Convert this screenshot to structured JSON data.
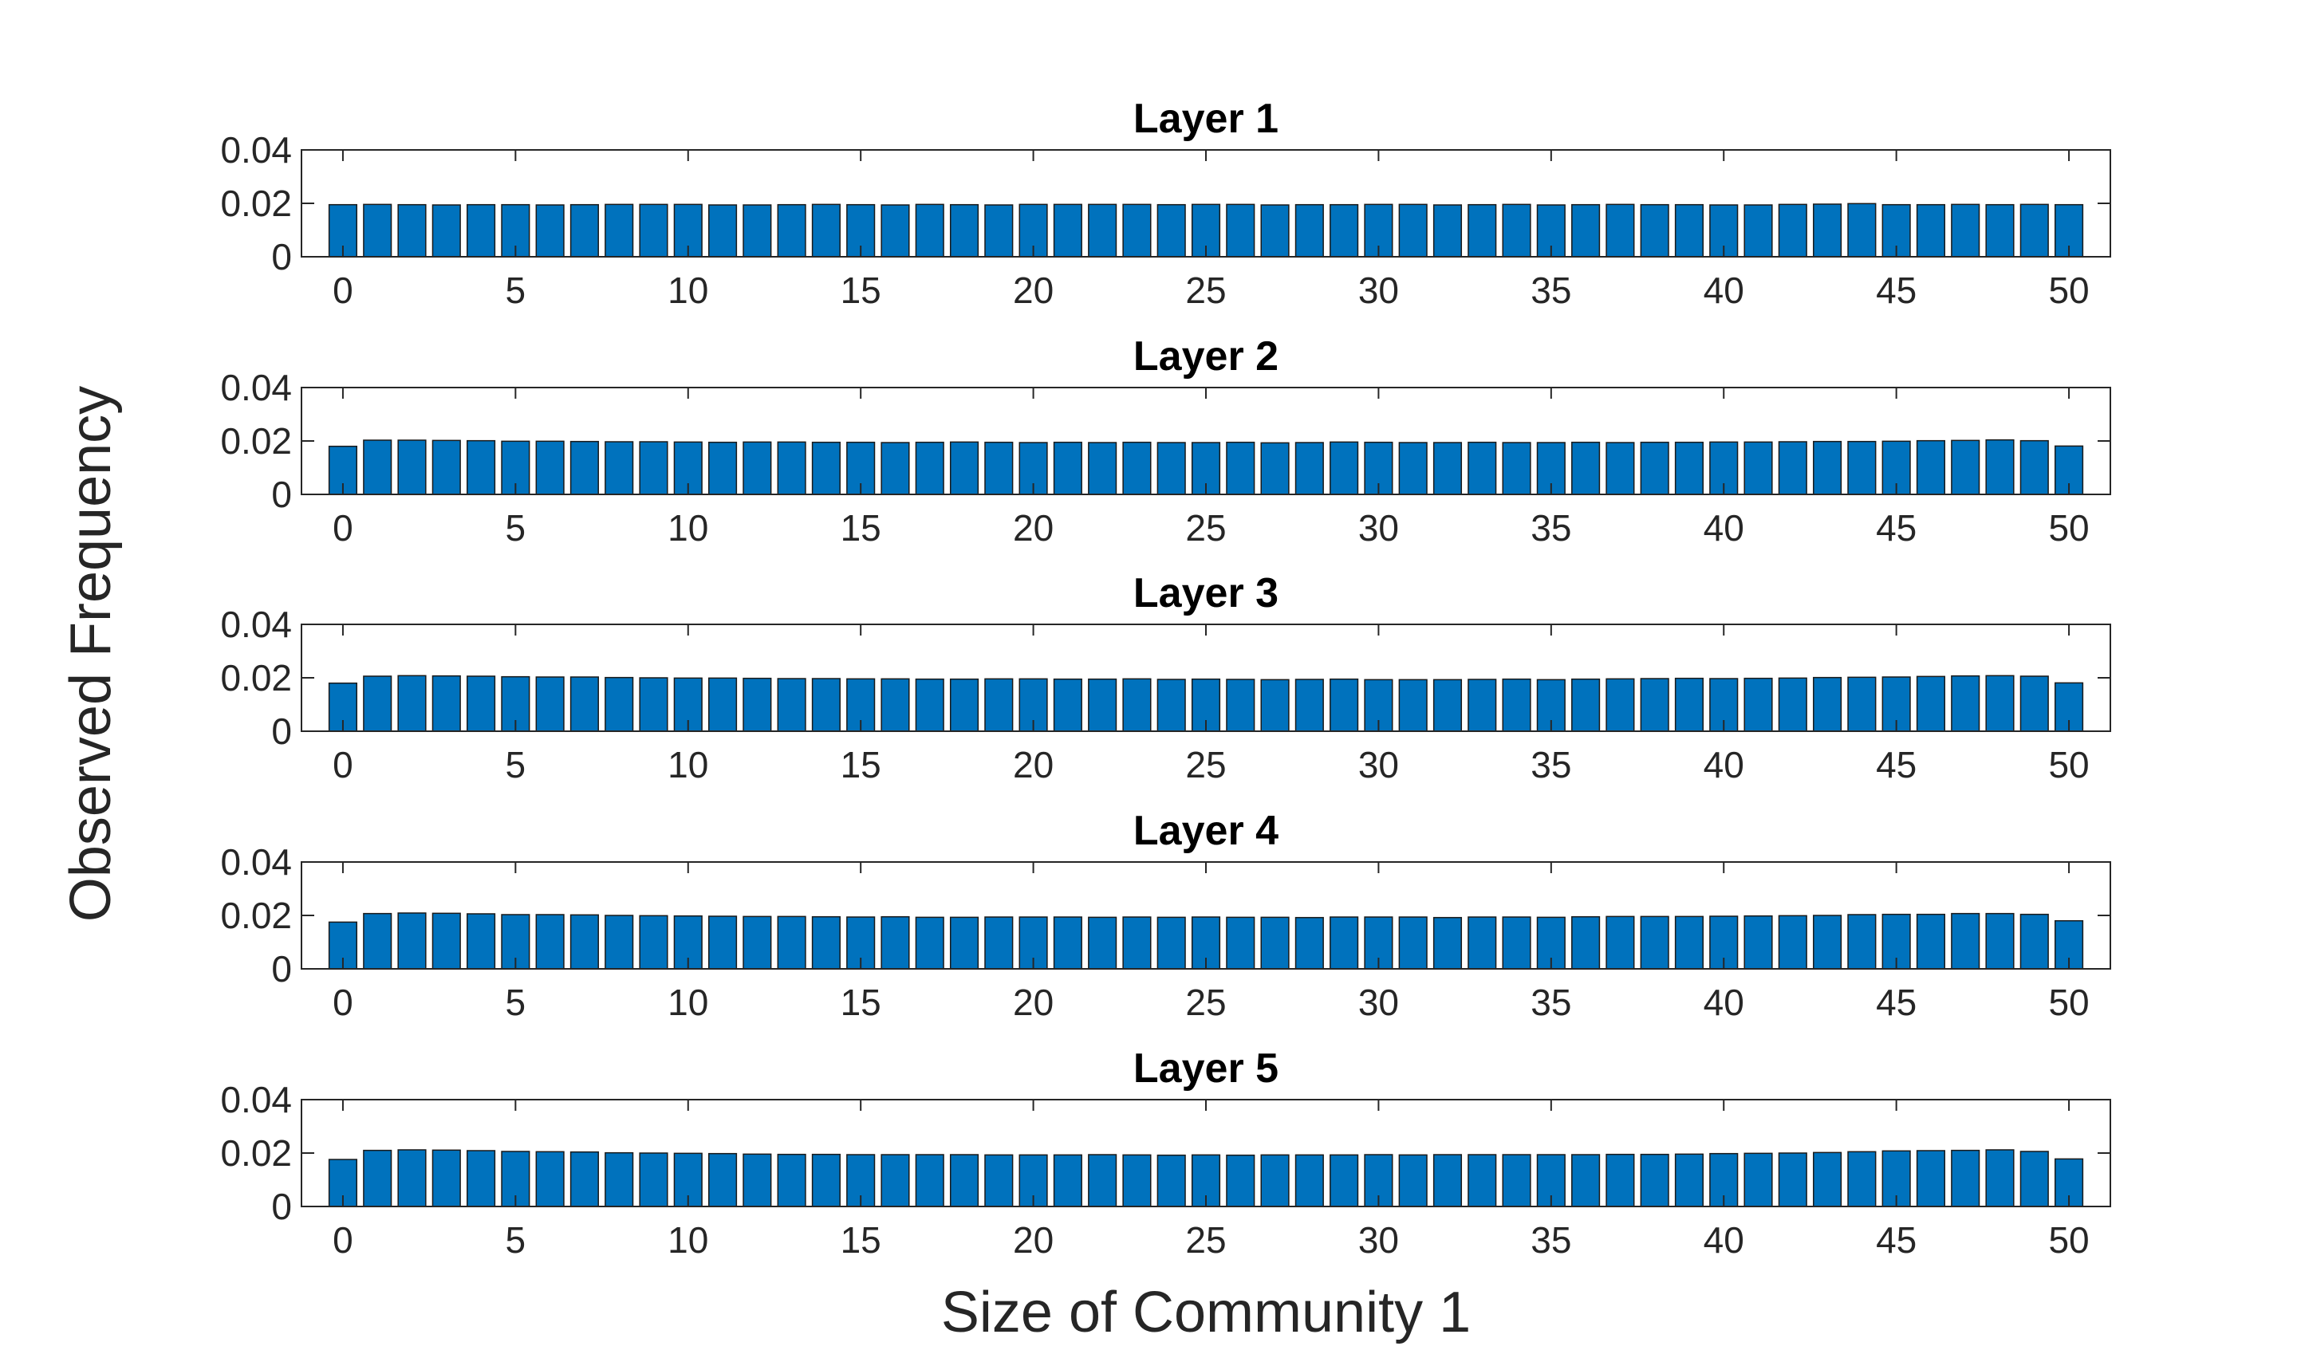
{
  "figure": {
    "xlabel": "Size of Community 1",
    "ylabel": "Observed Frequency",
    "bar_color": "#0072BD",
    "bar_edge_color": "#1a1a1a",
    "axis_color": "#262626"
  },
  "chart_data": [
    {
      "type": "bar",
      "title": "Layer 1",
      "x": [
        0,
        1,
        2,
        3,
        4,
        5,
        6,
        7,
        8,
        9,
        10,
        11,
        12,
        13,
        14,
        15,
        16,
        17,
        18,
        19,
        20,
        21,
        22,
        23,
        24,
        25,
        26,
        27,
        28,
        29,
        30,
        31,
        32,
        33,
        34,
        35,
        36,
        37,
        38,
        39,
        40,
        41,
        42,
        43,
        44,
        45,
        46,
        47,
        48,
        49,
        50
      ],
      "values": [
        0.0195,
        0.0196,
        0.0195,
        0.0194,
        0.0195,
        0.0195,
        0.0194,
        0.0195,
        0.0196,
        0.0196,
        0.0196,
        0.0194,
        0.0194,
        0.0195,
        0.0196,
        0.0195,
        0.0194,
        0.0196,
        0.0195,
        0.0194,
        0.0196,
        0.0196,
        0.0196,
        0.0196,
        0.0195,
        0.0196,
        0.0196,
        0.0194,
        0.0195,
        0.0195,
        0.0196,
        0.0196,
        0.0194,
        0.0195,
        0.0196,
        0.0194,
        0.0195,
        0.0196,
        0.0195,
        0.0195,
        0.0194,
        0.0194,
        0.0196,
        0.0197,
        0.0199,
        0.0195,
        0.0195,
        0.0196,
        0.0195,
        0.0196,
        0.0195
      ],
      "ylim": [
        0,
        0.04
      ],
      "yticks": [
        "0",
        "0.02",
        "0.04"
      ],
      "xticks": [
        "0",
        "5",
        "10",
        "15",
        "20",
        "25",
        "30",
        "35",
        "40",
        "45",
        "50"
      ]
    },
    {
      "type": "bar",
      "title": "Layer 2",
      "x": [
        0,
        1,
        2,
        3,
        4,
        5,
        6,
        7,
        8,
        9,
        10,
        11,
        12,
        13,
        14,
        15,
        16,
        17,
        18,
        19,
        20,
        21,
        22,
        23,
        24,
        25,
        26,
        27,
        28,
        29,
        30,
        31,
        32,
        33,
        34,
        35,
        36,
        37,
        38,
        39,
        40,
        41,
        42,
        43,
        44,
        45,
        46,
        47,
        48,
        49,
        50
      ],
      "values": [
        0.018,
        0.0203,
        0.0203,
        0.0202,
        0.0201,
        0.0199,
        0.0199,
        0.0198,
        0.0197,
        0.0197,
        0.0196,
        0.0195,
        0.0196,
        0.0196,
        0.0195,
        0.0195,
        0.0194,
        0.0195,
        0.0196,
        0.0195,
        0.0194,
        0.0195,
        0.0194,
        0.0195,
        0.0194,
        0.0194,
        0.0195,
        0.0193,
        0.0194,
        0.0196,
        0.0195,
        0.0194,
        0.0194,
        0.0195,
        0.0194,
        0.0194,
        0.0195,
        0.0194,
        0.0195,
        0.0195,
        0.0196,
        0.0196,
        0.0197,
        0.0198,
        0.0198,
        0.0199,
        0.0201,
        0.0202,
        0.0204,
        0.0201,
        0.0181
      ],
      "ylim": [
        0,
        0.04
      ],
      "yticks": [
        "0",
        "0.02",
        "0.04"
      ],
      "xticks": [
        "0",
        "5",
        "10",
        "15",
        "20",
        "25",
        "30",
        "35",
        "40",
        "45",
        "50"
      ]
    },
    {
      "type": "bar",
      "title": "Layer 3",
      "x": [
        0,
        1,
        2,
        3,
        4,
        5,
        6,
        7,
        8,
        9,
        10,
        11,
        12,
        13,
        14,
        15,
        16,
        17,
        18,
        19,
        20,
        21,
        22,
        23,
        24,
        25,
        26,
        27,
        28,
        29,
        30,
        31,
        32,
        33,
        34,
        35,
        36,
        37,
        38,
        39,
        40,
        41,
        42,
        43,
        44,
        45,
        46,
        47,
        48,
        49,
        50
      ],
      "values": [
        0.018,
        0.0206,
        0.0208,
        0.0207,
        0.0206,
        0.0204,
        0.0203,
        0.0203,
        0.0201,
        0.02,
        0.0199,
        0.0199,
        0.0198,
        0.0197,
        0.0197,
        0.0196,
        0.0196,
        0.0195,
        0.0195,
        0.0196,
        0.0196,
        0.0195,
        0.0195,
        0.0196,
        0.0194,
        0.0195,
        0.0194,
        0.0193,
        0.0194,
        0.0195,
        0.0193,
        0.0193,
        0.0193,
        0.0194,
        0.0195,
        0.0193,
        0.0195,
        0.0196,
        0.0197,
        0.0198,
        0.0197,
        0.0198,
        0.0199,
        0.0201,
        0.0202,
        0.0203,
        0.0205,
        0.0207,
        0.0208,
        0.0206,
        0.0181
      ],
      "ylim": [
        0,
        0.04
      ],
      "yticks": [
        "0",
        "0.02",
        "0.04"
      ],
      "xticks": [
        "0",
        "5",
        "10",
        "15",
        "20",
        "25",
        "30",
        "35",
        "40",
        "45",
        "50"
      ]
    },
    {
      "type": "bar",
      "title": "Layer 4",
      "x": [
        0,
        1,
        2,
        3,
        4,
        5,
        6,
        7,
        8,
        9,
        10,
        11,
        12,
        13,
        14,
        15,
        16,
        17,
        18,
        19,
        20,
        21,
        22,
        23,
        24,
        25,
        26,
        27,
        28,
        29,
        30,
        31,
        32,
        33,
        34,
        35,
        36,
        37,
        38,
        39,
        40,
        41,
        42,
        43,
        44,
        45,
        46,
        47,
        48,
        49,
        50
      ],
      "values": [
        0.0175,
        0.0207,
        0.0209,
        0.0208,
        0.0206,
        0.0203,
        0.0203,
        0.0202,
        0.02,
        0.0199,
        0.0198,
        0.0197,
        0.0196,
        0.0196,
        0.0195,
        0.0194,
        0.0195,
        0.0193,
        0.0193,
        0.0194,
        0.0194,
        0.0194,
        0.0193,
        0.0194,
        0.0193,
        0.0194,
        0.0193,
        0.0193,
        0.0192,
        0.0194,
        0.0194,
        0.0194,
        0.0192,
        0.0194,
        0.0194,
        0.0193,
        0.0195,
        0.0196,
        0.0196,
        0.0196,
        0.0197,
        0.0198,
        0.0199,
        0.02,
        0.0203,
        0.0204,
        0.0204,
        0.0207,
        0.0207,
        0.0204,
        0.018
      ],
      "ylim": [
        0,
        0.04
      ],
      "yticks": [
        "0",
        "0.02",
        "0.04"
      ],
      "xticks": [
        "0",
        "5",
        "10",
        "15",
        "20",
        "25",
        "30",
        "35",
        "40",
        "45",
        "50"
      ]
    },
    {
      "type": "bar",
      "title": "Layer 5",
      "x": [
        0,
        1,
        2,
        3,
        4,
        5,
        6,
        7,
        8,
        9,
        10,
        11,
        12,
        13,
        14,
        15,
        16,
        17,
        18,
        19,
        20,
        21,
        22,
        23,
        24,
        25,
        26,
        27,
        28,
        29,
        30,
        31,
        32,
        33,
        34,
        35,
        36,
        37,
        38,
        39,
        40,
        41,
        42,
        43,
        44,
        45,
        46,
        47,
        48,
        49,
        50
      ],
      "values": [
        0.0176,
        0.021,
        0.0212,
        0.0211,
        0.0209,
        0.0206,
        0.0205,
        0.0204,
        0.0201,
        0.02,
        0.0199,
        0.0198,
        0.0196,
        0.0195,
        0.0195,
        0.0194,
        0.0194,
        0.0194,
        0.0194,
        0.0193,
        0.0193,
        0.0193,
        0.0194,
        0.0193,
        0.0192,
        0.0193,
        0.0192,
        0.0193,
        0.0193,
        0.0193,
        0.0194,
        0.0193,
        0.0194,
        0.0194,
        0.0194,
        0.0194,
        0.0194,
        0.0195,
        0.0195,
        0.0196,
        0.0198,
        0.0199,
        0.02,
        0.0202,
        0.0205,
        0.0208,
        0.0209,
        0.021,
        0.0212,
        0.0206,
        0.0178
      ],
      "ylim": [
        0,
        0.04
      ],
      "yticks": [
        "0",
        "0.02",
        "0.04"
      ],
      "xticks": [
        "0",
        "5",
        "10",
        "15",
        "20",
        "25",
        "30",
        "35",
        "40",
        "45",
        "50"
      ]
    }
  ]
}
